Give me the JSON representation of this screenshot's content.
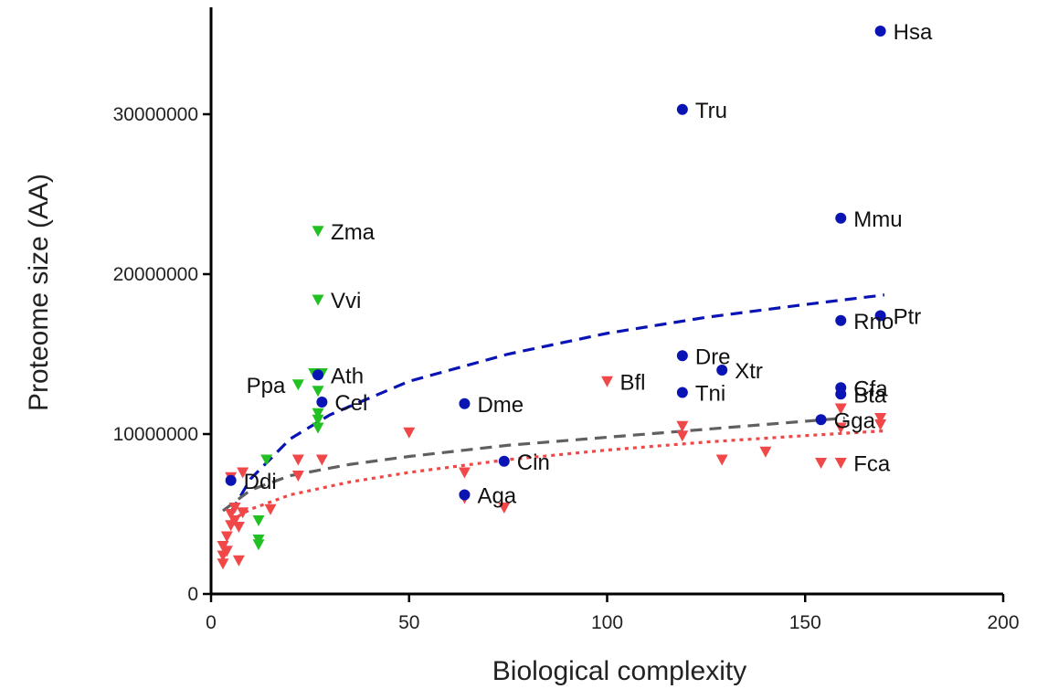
{
  "chart_data": {
    "type": "scatter",
    "title": "",
    "xlabel": "Biological complexity",
    "ylabel": "Proteome size (AA)",
    "xlim": [
      0,
      200
    ],
    "ylim": [
      0,
      36000000
    ],
    "x_ticks": [
      0,
      50,
      100,
      150,
      200
    ],
    "y_ticks": [
      0,
      10000000,
      20000000,
      30000000
    ],
    "grid": false,
    "legend": "none",
    "colors": {
      "blue": "#0a14b4",
      "green": "#22c022",
      "red": "#f04848",
      "gray": "#606060"
    },
    "series": [
      {
        "marker": "circle",
        "color": "blue",
        "points": [
          {
            "x": 5,
            "y": 7100000,
            "label": "Ddi"
          },
          {
            "x": 27,
            "y": 13700000,
            "label": "Ath"
          },
          {
            "x": 28,
            "y": 12000000,
            "label": "Cel"
          },
          {
            "x": 64,
            "y": 11900000,
            "label": "Dme"
          },
          {
            "x": 64,
            "y": 6200000,
            "label": "Aga"
          },
          {
            "x": 74,
            "y": 8300000,
            "label": "Cin"
          },
          {
            "x": 119,
            "y": 30300000,
            "label": "Tru"
          },
          {
            "x": 119,
            "y": 14900000,
            "label": "Dre"
          },
          {
            "x": 119,
            "y": 12600000,
            "label": "Tni"
          },
          {
            "x": 129,
            "y": 14000000,
            "label": "Xtr"
          },
          {
            "x": 154,
            "y": 10900000,
            "label": "Gga"
          },
          {
            "x": 159,
            "y": 23500000,
            "label": "Mmu"
          },
          {
            "x": 159,
            "y": 17100000,
            "label": "Rno"
          },
          {
            "x": 159,
            "y": 12900000,
            "label": "Cfa"
          },
          {
            "x": 159,
            "y": 12500000,
            "label": "Bta"
          },
          {
            "x": 169,
            "y": 35200000,
            "label": "Hsa"
          },
          {
            "x": 169,
            "y": 17400000,
            "label": "Ptr"
          }
        ]
      },
      {
        "marker": "triangle-down",
        "color": "green",
        "points": [
          {
            "x": 27,
            "y": 22700000,
            "label": "Zma"
          },
          {
            "x": 27,
            "y": 18400000,
            "label": "Vvi"
          },
          {
            "x": 22,
            "y": 13100000,
            "label": "Ppa"
          },
          {
            "x": 26,
            "y": 13800000
          },
          {
            "x": 28,
            "y": 13800000
          },
          {
            "x": 27,
            "y": 12700000
          },
          {
            "x": 27,
            "y": 11300000
          },
          {
            "x": 27,
            "y": 10900000
          },
          {
            "x": 27,
            "y": 10400000
          },
          {
            "x": 14,
            "y": 8400000
          },
          {
            "x": 12,
            "y": 4600000
          },
          {
            "x": 12,
            "y": 3400000
          },
          {
            "x": 12,
            "y": 3100000
          }
        ]
      },
      {
        "marker": "triangle-down",
        "color": "red",
        "points": [
          {
            "x": 100,
            "y": 13300000,
            "label": "Bfl"
          },
          {
            "x": 159,
            "y": 8200000,
            "label": "Fca"
          },
          {
            "x": 3,
            "y": 1900000
          },
          {
            "x": 3,
            "y": 2400000
          },
          {
            "x": 3,
            "y": 3000000
          },
          {
            "x": 4,
            "y": 2700000
          },
          {
            "x": 4,
            "y": 3600000
          },
          {
            "x": 5,
            "y": 4300000
          },
          {
            "x": 5,
            "y": 5000000
          },
          {
            "x": 6,
            "y": 4600000
          },
          {
            "x": 6,
            "y": 5400000
          },
          {
            "x": 7,
            "y": 2100000
          },
          {
            "x": 7,
            "y": 4200000
          },
          {
            "x": 8,
            "y": 5100000
          },
          {
            "x": 8,
            "y": 7600000
          },
          {
            "x": 5,
            "y": 7300000
          },
          {
            "x": 15,
            "y": 5300000
          },
          {
            "x": 22,
            "y": 7400000
          },
          {
            "x": 22,
            "y": 8400000
          },
          {
            "x": 28,
            "y": 8400000
          },
          {
            "x": 50,
            "y": 10100000
          },
          {
            "x": 64,
            "y": 7600000
          },
          {
            "x": 64,
            "y": 6000000
          },
          {
            "x": 74,
            "y": 5400000
          },
          {
            "x": 119,
            "y": 10500000
          },
          {
            "x": 119,
            "y": 9900000
          },
          {
            "x": 129,
            "y": 8400000
          },
          {
            "x": 140,
            "y": 8900000
          },
          {
            "x": 154,
            "y": 8200000
          },
          {
            "x": 159,
            "y": 11600000
          },
          {
            "x": 159,
            "y": 10400000
          },
          {
            "x": 169,
            "y": 11000000
          },
          {
            "x": 169,
            "y": 10600000
          }
        ]
      }
    ],
    "fit_lines": [
      {
        "style": "dashed",
        "color": "blue",
        "points": [
          [
            5,
            5100000
          ],
          [
            10,
            7200000
          ],
          [
            20,
            9700000
          ],
          [
            30,
            11200000
          ],
          [
            50,
            13300000
          ],
          [
            75,
            15000000
          ],
          [
            100,
            16300000
          ],
          [
            125,
            17300000
          ],
          [
            150,
            18100000
          ],
          [
            170,
            18700000
          ]
        ]
      },
      {
        "style": "dashed",
        "color": "gray",
        "points": [
          [
            3,
            5200000
          ],
          [
            10,
            6500000
          ],
          [
            20,
            7400000
          ],
          [
            35,
            8100000
          ],
          [
            50,
            8600000
          ],
          [
            75,
            9300000
          ],
          [
            100,
            9800000
          ],
          [
            125,
            10300000
          ],
          [
            150,
            10800000
          ],
          [
            160,
            11000000
          ]
        ]
      },
      {
        "style": "dotted",
        "color": "red",
        "points": [
          [
            5,
            4600000
          ],
          [
            10,
            5300000
          ],
          [
            20,
            6200000
          ],
          [
            35,
            7000000
          ],
          [
            50,
            7600000
          ],
          [
            75,
            8400000
          ],
          [
            100,
            9000000
          ],
          [
            125,
            9500000
          ],
          [
            150,
            9900000
          ],
          [
            170,
            10200000
          ]
        ]
      }
    ]
  }
}
